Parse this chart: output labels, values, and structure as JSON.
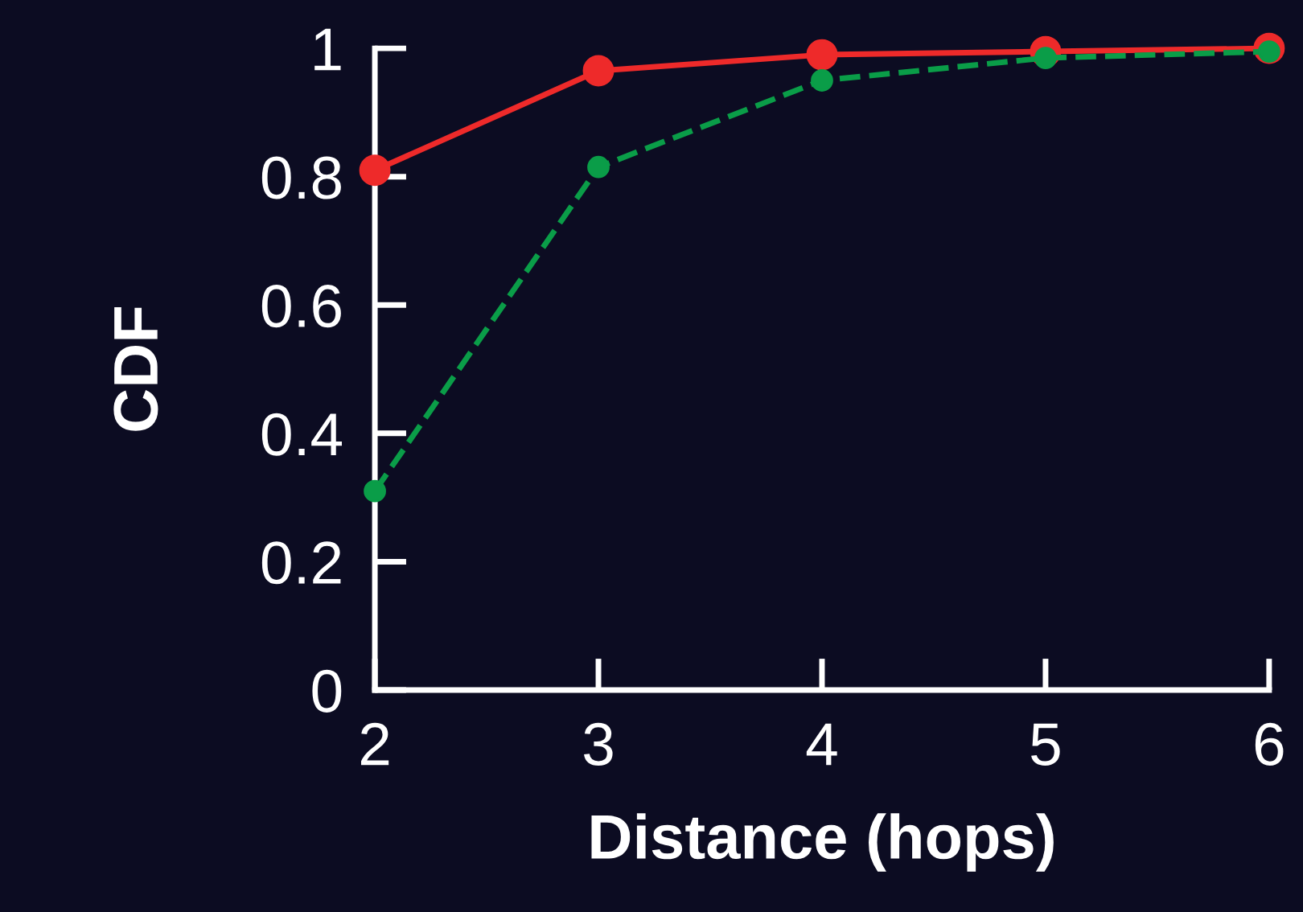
{
  "chart_data": {
    "type": "line",
    "xlabel": "Distance (hops)",
    "ylabel": "CDF",
    "x": [
      2,
      3,
      4,
      5,
      6
    ],
    "series": [
      {
        "color": "#ee2a2a",
        "values": [
          0.81,
          0.965,
          0.99,
          0.995,
          1.0
        ],
        "line_style": "solid"
      },
      {
        "color": "#0a9d48",
        "values": [
          0.31,
          0.815,
          0.95,
          0.985,
          0.995
        ],
        "line_style": "dashed"
      }
    ],
    "xlim": [
      2,
      6
    ],
    "xticks": [
      2,
      3,
      4,
      5,
      6
    ],
    "ylim": [
      0,
      1
    ],
    "yticks": [
      0,
      0.2,
      0.4,
      0.6,
      0.8,
      1
    ],
    "marker": "circle",
    "grid": false,
    "legend": false
  }
}
